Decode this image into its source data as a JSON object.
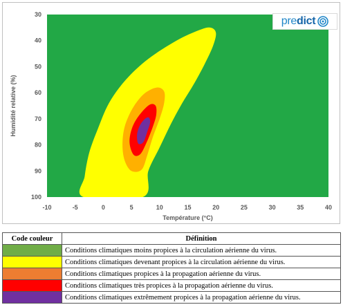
{
  "chart_data": {
    "type": "contour",
    "xlabel": "Température (°C)",
    "ylabel": "Humidité relative (%)",
    "xlim": [
      -10,
      40
    ],
    "ylim": [
      30,
      100
    ],
    "y_inverted": true,
    "x_ticks": [
      "-10",
      "-5",
      "0",
      "5",
      "10",
      "15",
      "20",
      "25",
      "30",
      "35",
      "40"
    ],
    "y_ticks": [
      "30",
      "40",
      "50",
      "60",
      "70",
      "80",
      "90",
      "100"
    ],
    "background_color": "#22a846",
    "zones": [
      {
        "level": "yellow",
        "color": "#ffff00",
        "outline": [
          [
            -3.5,
            100
          ],
          [
            -3.3,
            92
          ],
          [
            -2.5,
            83
          ],
          [
            -1,
            74
          ],
          [
            1,
            64
          ],
          [
            4,
            55
          ],
          [
            8,
            47
          ],
          [
            13,
            40
          ],
          [
            17,
            36
          ],
          [
            19,
            35
          ],
          [
            20,
            37
          ],
          [
            19.5,
            42
          ],
          [
            18,
            49
          ],
          [
            16,
            57
          ],
          [
            14,
            64
          ],
          [
            12,
            72
          ],
          [
            10,
            81
          ],
          [
            8,
            90
          ],
          [
            7,
            100
          ]
        ]
      },
      {
        "level": "orange",
        "color": "#ffb000",
        "outline": [
          [
            5,
            90
          ],
          [
            3.8,
            86
          ],
          [
            3.4,
            80
          ],
          [
            3.8,
            73
          ],
          [
            5.2,
            66
          ],
          [
            7.2,
            60.5
          ],
          [
            9.5,
            58
          ],
          [
            10.8,
            59.5
          ],
          [
            10.8,
            64
          ],
          [
            10,
            70
          ],
          [
            8.8,
            77
          ],
          [
            7.8,
            84
          ],
          [
            6.8,
            89.5
          ]
        ]
      },
      {
        "level": "red",
        "color": "#ff0000",
        "outline": [
          [
            5.5,
            84
          ],
          [
            4.8,
            81
          ],
          [
            4.7,
            77
          ],
          [
            5.4,
            72
          ],
          [
            6.8,
            67.5
          ],
          [
            8.3,
            64.5
          ],
          [
            9.3,
            65
          ],
          [
            9.4,
            68.5
          ],
          [
            8.8,
            73
          ],
          [
            7.7,
            79
          ],
          [
            6.6,
            83.5
          ]
        ]
      },
      {
        "level": "purple",
        "color": "#7030a0",
        "outline": [
          [
            6.2,
            79.5
          ],
          [
            6,
            76
          ],
          [
            6.5,
            72.5
          ],
          [
            7.4,
            70
          ],
          [
            8.1,
            69.5
          ],
          [
            8.3,
            71.5
          ],
          [
            7.8,
            75
          ],
          [
            7.1,
            79
          ]
        ]
      }
    ]
  },
  "logo": {
    "part1": "pre",
    "part2": "dict"
  },
  "legend": {
    "header_code": "Code couleur",
    "header_definition": "Définition",
    "rows": [
      {
        "color": "#70ad47",
        "text": "Conditions climatiques moins propices à la circulation aérienne du virus."
      },
      {
        "color": "#ffff00",
        "text": "Conditions climatiques devenant propices à la circulation aérienne du virus."
      },
      {
        "color": "#ed7d31",
        "text": "Conditions climatiques propices à la propagation aérienne du virus."
      },
      {
        "color": "#ff0000",
        "text": "Conditions climatiques très propices à la propagation aérienne du virus."
      },
      {
        "color": "#7030a0",
        "text": "Conditions climatiques extrêmement propices à la propagation aérienne du virus."
      }
    ]
  }
}
